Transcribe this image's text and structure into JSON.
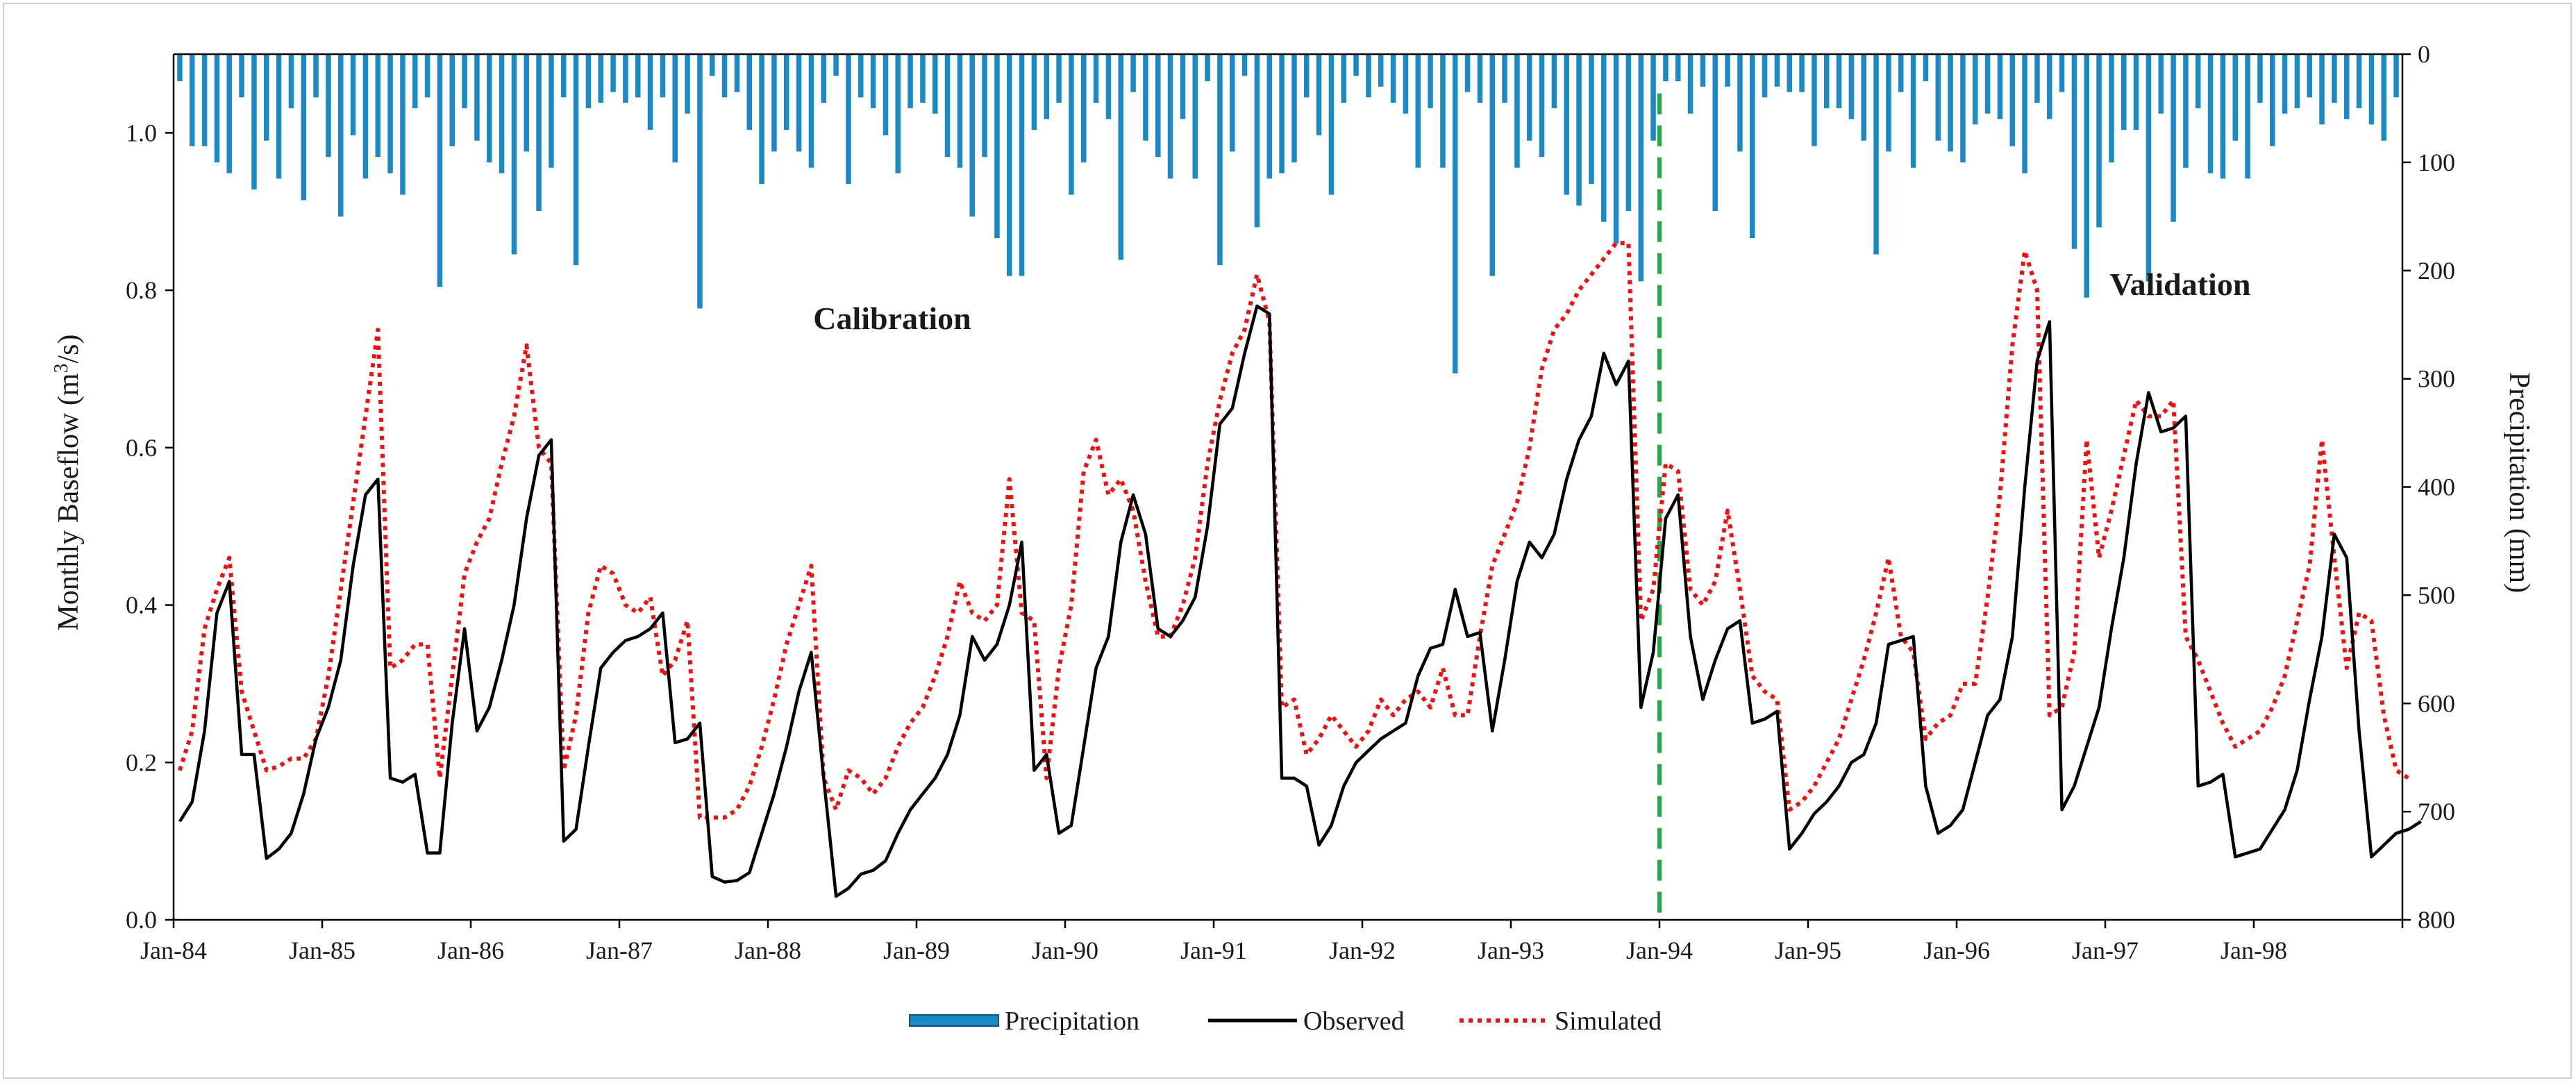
{
  "chart_data": {
    "type": "line+bar",
    "title": "",
    "xlabel": "",
    "ylabel": "Monthly Baseflow (m³/s)",
    "y2label": "Precipitation (mm)",
    "ylim": [
      0,
      1.1
    ],
    "y2lim": [
      800,
      0
    ],
    "y_ticks": [
      "0.0",
      "0.2",
      "0.4",
      "0.6",
      "0.8",
      "1.0"
    ],
    "y2_ticks": [
      "0",
      "100",
      "200",
      "300",
      "400",
      "500",
      "600",
      "700",
      "800"
    ],
    "x_ticks": [
      "Jan-84",
      "Jan-85",
      "Jan-86",
      "Jan-87",
      "Jan-88",
      "Jan-89",
      "Jan-90",
      "Jan-91",
      "Jan-92",
      "Jan-93",
      "Jan-94",
      "Jan-95",
      "Jan-96",
      "Jan-97",
      "Jan-98"
    ],
    "n_months": 180,
    "start": "Jan-84",
    "annotations": {
      "calibration": "Calibration",
      "validation": "Validation",
      "split_month_index": 120
    },
    "legend": {
      "precip": "Precipitation",
      "observed": "Observed",
      "simulated": "Simulated"
    },
    "colors": {
      "precip": "#1a8ac4",
      "observed": "#000000",
      "simulated": "#ee1111",
      "split": "#22aa44"
    },
    "series": [
      {
        "name": "Observed",
        "values": [
          0.125,
          0.15,
          0.24,
          0.39,
          0.43,
          0.21,
          0.21,
          0.078,
          0.09,
          0.11,
          0.16,
          0.23,
          0.27,
          0.33,
          0.45,
          0.54,
          0.56,
          0.18,
          0.175,
          0.185,
          0.085,
          0.085,
          0.25,
          0.37,
          0.24,
          0.27,
          0.33,
          0.4,
          0.51,
          0.59,
          0.61,
          0.1,
          0.115,
          0.22,
          0.32,
          0.34,
          0.355,
          0.36,
          0.37,
          0.39,
          0.225,
          0.23,
          0.25,
          0.055,
          0.048,
          0.05,
          0.06,
          0.11,
          0.16,
          0.22,
          0.29,
          0.34,
          0.18,
          0.03,
          0.04,
          0.058,
          0.063,
          0.075,
          0.11,
          0.14,
          0.16,
          0.18,
          0.21,
          0.26,
          0.36,
          0.33,
          0.35,
          0.4,
          0.48,
          0.19,
          0.21,
          0.11,
          0.12,
          0.22,
          0.32,
          0.36,
          0.48,
          0.54,
          0.49,
          0.37,
          0.36,
          0.38,
          0.41,
          0.5,
          0.63,
          0.65,
          0.72,
          0.78,
          0.77,
          0.18,
          0.18,
          0.17,
          0.095,
          0.12,
          0.17,
          0.2,
          0.215,
          0.23,
          0.24,
          0.25,
          0.31,
          0.345,
          0.35,
          0.42,
          0.36,
          0.365,
          0.24,
          0.33,
          0.43,
          0.48,
          0.46,
          0.49,
          0.56,
          0.61,
          0.64,
          0.72,
          0.68,
          0.71,
          0.27,
          0.34,
          0.51,
          0.54,
          0.36,
          0.28,
          0.33,
          0.37,
          0.38,
          0.25,
          0.255,
          0.265,
          0.09,
          0.11,
          0.135,
          0.15,
          0.17,
          0.2,
          0.21,
          0.25,
          0.35,
          0.355,
          0.36,
          0.17,
          0.11,
          0.12,
          0.14,
          0.2,
          0.26,
          0.28,
          0.36,
          0.55,
          0.71,
          0.76,
          0.14,
          0.17,
          0.22,
          0.27,
          0.37,
          0.46,
          0.58,
          0.67,
          0.62,
          0.625,
          0.64,
          0.17,
          0.175,
          0.185,
          0.08,
          0.085,
          0.09,
          0.115,
          0.14,
          0.19,
          0.28,
          0.36,
          0.49,
          0.46,
          0.24,
          0.08,
          0.095,
          0.11,
          0.115,
          0.125
        ]
      },
      {
        "name": "Simulated",
        "values": [
          0.19,
          0.24,
          0.37,
          0.42,
          0.46,
          0.29,
          0.24,
          0.19,
          0.195,
          0.205,
          0.205,
          0.23,
          0.31,
          0.42,
          0.53,
          0.64,
          0.75,
          0.32,
          0.33,
          0.35,
          0.35,
          0.18,
          0.31,
          0.44,
          0.48,
          0.51,
          0.58,
          0.64,
          0.73,
          0.6,
          0.58,
          0.19,
          0.26,
          0.39,
          0.45,
          0.44,
          0.4,
          0.39,
          0.41,
          0.31,
          0.33,
          0.38,
          0.13,
          0.13,
          0.13,
          0.14,
          0.17,
          0.22,
          0.28,
          0.35,
          0.4,
          0.45,
          0.18,
          0.14,
          0.19,
          0.18,
          0.16,
          0.18,
          0.22,
          0.25,
          0.27,
          0.31,
          0.36,
          0.43,
          0.39,
          0.38,
          0.4,
          0.56,
          0.39,
          0.38,
          0.18,
          0.32,
          0.4,
          0.57,
          0.61,
          0.54,
          0.56,
          0.52,
          0.43,
          0.36,
          0.36,
          0.4,
          0.46,
          0.58,
          0.66,
          0.72,
          0.75,
          0.82,
          0.76,
          0.27,
          0.28,
          0.21,
          0.23,
          0.26,
          0.24,
          0.22,
          0.24,
          0.28,
          0.26,
          0.28,
          0.29,
          0.27,
          0.32,
          0.26,
          0.26,
          0.36,
          0.45,
          0.49,
          0.53,
          0.6,
          0.7,
          0.75,
          0.77,
          0.8,
          0.82,
          0.84,
          0.86,
          0.86,
          0.38,
          0.42,
          0.58,
          0.57,
          0.42,
          0.4,
          0.43,
          0.52,
          0.42,
          0.31,
          0.29,
          0.28,
          0.14,
          0.15,
          0.17,
          0.2,
          0.23,
          0.28,
          0.33,
          0.39,
          0.46,
          0.36,
          0.34,
          0.23,
          0.25,
          0.26,
          0.3,
          0.3,
          0.41,
          0.54,
          0.73,
          0.85,
          0.8,
          0.26,
          0.27,
          0.34,
          0.61,
          0.46,
          0.52,
          0.59,
          0.66,
          0.64,
          0.64,
          0.66,
          0.36,
          0.33,
          0.29,
          0.25,
          0.22,
          0.23,
          0.24,
          0.27,
          0.31,
          0.38,
          0.45,
          0.61,
          0.46,
          0.32,
          0.39,
          0.38,
          0.26,
          0.19,
          0.18
        ]
      },
      {
        "name": "Precipitation",
        "values": [
          25,
          85,
          85,
          100,
          110,
          40,
          125,
          80,
          115,
          50,
          135,
          40,
          95,
          150,
          75,
          115,
          95,
          110,
          130,
          50,
          40,
          215,
          85,
          50,
          80,
          100,
          110,
          185,
          90,
          145,
          105,
          40,
          195,
          50,
          45,
          35,
          45,
          40,
          70,
          40,
          100,
          55,
          235,
          20,
          40,
          35,
          70,
          120,
          90,
          70,
          90,
          105,
          45,
          20,
          120,
          40,
          50,
          75,
          110,
          50,
          45,
          55,
          95,
          105,
          150,
          95,
          170,
          205,
          205,
          70,
          60,
          45,
          130,
          100,
          45,
          60,
          190,
          35,
          80,
          95,
          115,
          60,
          115,
          25,
          195,
          90,
          20,
          160,
          115,
          110,
          100,
          40,
          75,
          130,
          45,
          20,
          40,
          30,
          45,
          55,
          105,
          50,
          105,
          295,
          35,
          45,
          205,
          45,
          105,
          80,
          95,
          50,
          130,
          140,
          120,
          155,
          175,
          145,
          210,
          80,
          25,
          25,
          55,
          30,
          145,
          30,
          90,
          170,
          40,
          30,
          35,
          35,
          85,
          50,
          50,
          60,
          80,
          185,
          90,
          35,
          105,
          25,
          80,
          90,
          100,
          65,
          55,
          60,
          85,
          110,
          45,
          60,
          35,
          180,
          225,
          160,
          100,
          70,
          70,
          210,
          55,
          155,
          105,
          50,
          110,
          115,
          80,
          115,
          45,
          85,
          55,
          50,
          40,
          65,
          45,
          60,
          50,
          65,
          80,
          40
        ]
      }
    ]
  }
}
